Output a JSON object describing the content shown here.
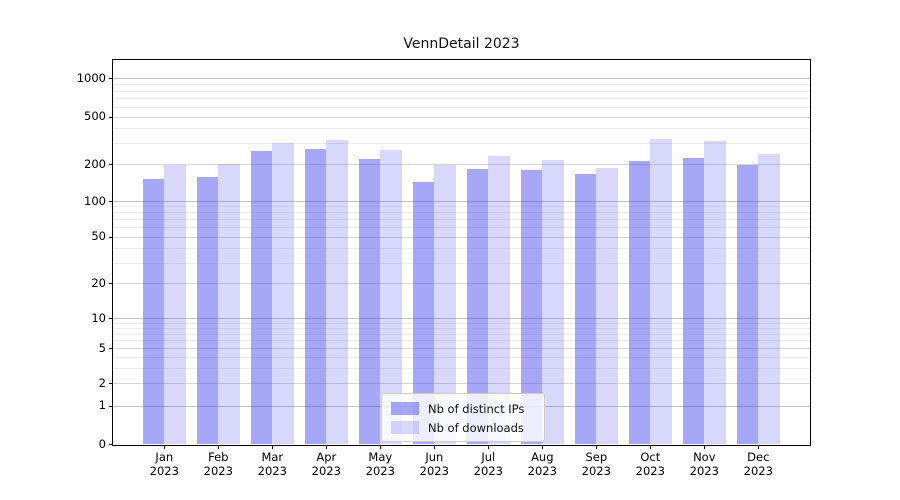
{
  "chart_data": {
    "type": "bar",
    "title": "VennDetail 2023",
    "categories": [
      "Jan",
      "Feb",
      "Mar",
      "Apr",
      "May",
      "Jun",
      "Jul",
      "Aug",
      "Sep",
      "Oct",
      "Nov",
      "Dec"
    ],
    "x_tick_second_line": "2023",
    "series": [
      {
        "name": "Nb of distinct IPs",
        "color": "rgba(60,60,240,0.45)",
        "values": [
          150,
          158,
          255,
          265,
          220,
          143,
          183,
          180,
          165,
          214,
          225,
          195
        ]
      },
      {
        "name": "Nb of downloads",
        "color": "rgba(60,60,240,0.2)",
        "values": [
          195,
          200,
          300,
          320,
          260,
          197,
          232,
          218,
          186,
          325,
          310,
          245
        ]
      }
    ],
    "yscale": "symlog",
    "ylim": [
      0,
      1450
    ],
    "y_ticks": [
      0,
      1,
      2,
      5,
      10,
      20,
      50,
      100,
      200,
      500,
      1000
    ],
    "y_minor_gridlines": [
      3,
      4,
      6,
      7,
      8,
      9,
      30,
      40,
      60,
      70,
      80,
      90,
      300,
      400,
      600,
      700,
      800,
      900
    ],
    "grid": "both",
    "legend_position": "lower center",
    "xlabel": "",
    "ylabel": ""
  },
  "colors": {
    "bar_dark": "#a6a6f7",
    "bar_light": "#d9d9fc",
    "grid_major": "#c3c3c3",
    "grid_mid": "#d6d6d6",
    "grid_minor": "#ededed",
    "spine": "#000000",
    "background": "#ffffff"
  }
}
